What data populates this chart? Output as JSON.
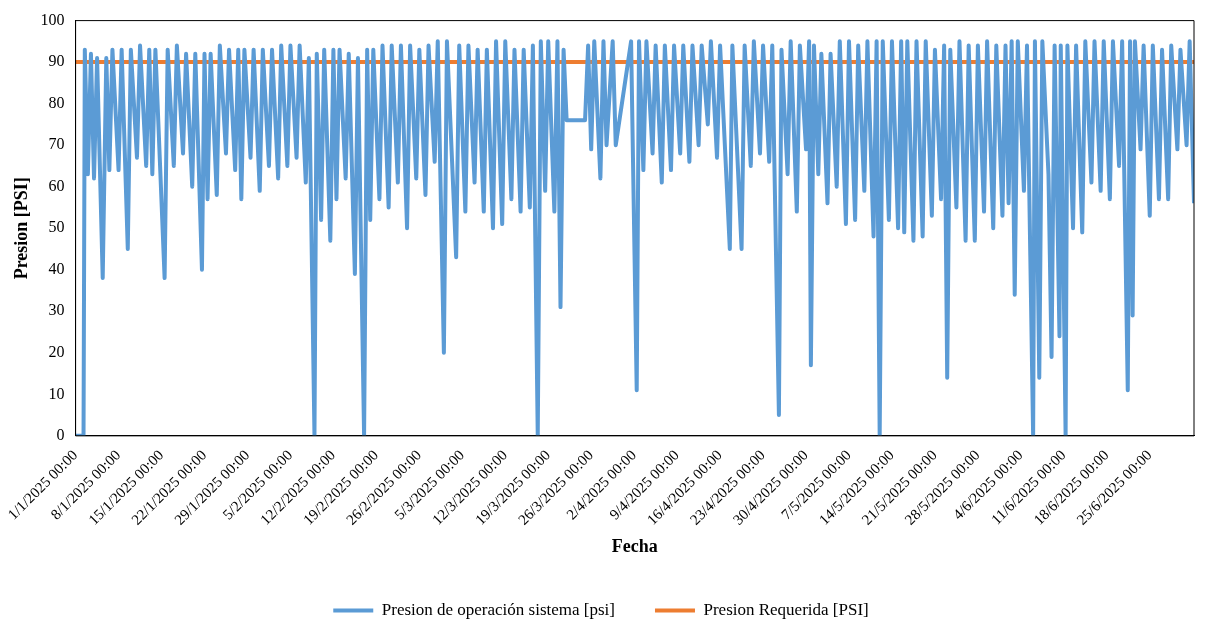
{
  "chart_data": {
    "type": "line",
    "xlabel": "Fecha",
    "ylabel": "Presion [PSI]",
    "xlim": [
      "2025-01-01",
      "2025-07-02T05:00"
    ],
    "xticks": [
      {
        "value": "2025-01-01",
        "label": "1/1/2025 00:00"
      },
      {
        "value": "2025-01-08",
        "label": "8/1/2025 00:00"
      },
      {
        "value": "2025-01-15",
        "label": "15/1/2025 00:00"
      },
      {
        "value": "2025-01-22",
        "label": "22/1/2025 00:00"
      },
      {
        "value": "2025-01-29",
        "label": "29/1/2025 00:00"
      },
      {
        "value": "2025-02-05",
        "label": "5/2/2025 00:00"
      },
      {
        "value": "2025-02-12",
        "label": "12/2/2025 00:00"
      },
      {
        "value": "2025-02-19",
        "label": "19/2/2025 00:00"
      },
      {
        "value": "2025-02-26",
        "label": "26/2/2025 00:00"
      },
      {
        "value": "2025-03-05",
        "label": "5/3/2025 00:00"
      },
      {
        "value": "2025-03-12",
        "label": "12/3/2025 00:00"
      },
      {
        "value": "2025-03-19",
        "label": "19/3/2025 00:00"
      },
      {
        "value": "2025-03-26",
        "label": "26/3/2025 00:00"
      },
      {
        "value": "2025-04-02",
        "label": "2/4/2025 00:00"
      },
      {
        "value": "2025-04-09",
        "label": "9/4/2025 00:00"
      },
      {
        "value": "2025-04-16",
        "label": "16/4/2025 00:00"
      },
      {
        "value": "2025-04-23",
        "label": "23/4/2025 00:00"
      },
      {
        "value": "2025-04-30",
        "label": "30/4/2025 00:00"
      },
      {
        "value": "2025-05-07",
        "label": "7/5/2025 00:00"
      },
      {
        "value": "2025-05-14",
        "label": "14/5/2025 00:00"
      },
      {
        "value": "2025-05-21",
        "label": "21/5/2025 00:00"
      },
      {
        "value": "2025-05-28",
        "label": "28/5/2025 00:00"
      },
      {
        "value": "2025-06-04",
        "label": "4/6/2025 00:00"
      },
      {
        "value": "2025-06-11",
        "label": "11/6/2025 00:00"
      },
      {
        "value": "2025-06-18",
        "label": "18/6/2025 00:00"
      },
      {
        "value": "2025-06-25",
        "label": "25/6/2025 00:00"
      }
    ],
    "ylim": [
      0,
      100
    ],
    "yticks": [
      0,
      10,
      20,
      30,
      40,
      50,
      60,
      70,
      80,
      90,
      100
    ],
    "grid": false,
    "legend": "bottom",
    "marker": "none",
    "series": [
      {
        "name": "Presion de operación sistema [psi]",
        "color": "#5b9bd5",
        "x": [
          "2025-01-01",
          "2025-01-02T07:00",
          "2025-01-02T12:00",
          "2025-01-03",
          "2025-01-03T12:00",
          "2025-01-04",
          "2025-01-04T12:00",
          "2025-01-05T10:00",
          "2025-01-06",
          "2025-01-06T12:00",
          "2025-01-07",
          "2025-01-08",
          "2025-01-08T12:00",
          "2025-01-09T12:00",
          "2025-01-10",
          "2025-01-11",
          "2025-01-11T12:00",
          "2025-01-12T12:00",
          "2025-01-13",
          "2025-01-13T12:00",
          "2025-01-14",
          "2025-01-15T12:00",
          "2025-01-16",
          "2025-01-17",
          "2025-01-17T12:00",
          "2025-01-18T12:00",
          "2025-01-19",
          "2025-01-20",
          "2025-01-20T12:00",
          "2025-01-21T14:00",
          "2025-01-22",
          "2025-01-22T12:00",
          "2025-01-23",
          "2025-01-24",
          "2025-01-24T12:00",
          "2025-01-25T12:00",
          "2025-01-26",
          "2025-01-27",
          "2025-01-27T12:00",
          "2025-01-28",
          "2025-01-28T12:00",
          "2025-01-29T12:00",
          "2025-01-30",
          "2025-01-31",
          "2025-01-31T12:00",
          "2025-02-01T12:00",
          "2025-02-02",
          "2025-02-03",
          "2025-02-03T12:00",
          "2025-02-04T12:00",
          "2025-02-05",
          "2025-02-06",
          "2025-02-06T12:00",
          "2025-02-07T12:00",
          "2025-02-08",
          "2025-02-08T22:00",
          "2025-02-09T07:00",
          "2025-02-10",
          "2025-02-10T12:00",
          "2025-02-11T12:00",
          "2025-02-12",
          "2025-02-12T12:00",
          "2025-02-13",
          "2025-02-14",
          "2025-02-14T12:00",
          "2025-02-15T12:00",
          "2025-02-16",
          "2025-02-17",
          "2025-02-17T12:00",
          "2025-02-18",
          "2025-02-18T12:00",
          "2025-02-19T12:00",
          "2025-02-20",
          "2025-02-21",
          "2025-02-21T12:00",
          "2025-02-22T12:00",
          "2025-02-23",
          "2025-02-24",
          "2025-02-24T12:00",
          "2025-02-25T12:00",
          "2025-02-26",
          "2025-02-27",
          "2025-02-27T12:00",
          "2025-02-28T12:00",
          "2025-03-01",
          "2025-03-02",
          "2025-03-02T12:00",
          "2025-03-04",
          "2025-03-04T12:00",
          "2025-03-05T12:00",
          "2025-03-06",
          "2025-03-07",
          "2025-03-07T12:00",
          "2025-03-08T12:00",
          "2025-03-09",
          "2025-03-10",
          "2025-03-10T12:00",
          "2025-03-11T12:00",
          "2025-03-12",
          "2025-03-13",
          "2025-03-13T12:00",
          "2025-03-14T12:00",
          "2025-03-15",
          "2025-03-16",
          "2025-03-16T12:00",
          "2025-03-17T07:00",
          "2025-03-17T19:00",
          "2025-03-18T12:00",
          "2025-03-19",
          "2025-03-20",
          "2025-03-20T12:00",
          "2025-03-21",
          "2025-03-21T12:00",
          "2025-03-22",
          "2025-03-25",
          "2025-03-25T12:00",
          "2025-03-26",
          "2025-03-26T12:00",
          "2025-03-27T12:00",
          "2025-03-28",
          "2025-03-28T12:00",
          "2025-03-29T12:00",
          "2025-03-30",
          "2025-04-01",
          "2025-04-01T12:00",
          "2025-04-02T10:00",
          "2025-04-02T19:00",
          "2025-04-03T12:00",
          "2025-04-04",
          "2025-04-05",
          "2025-04-05T12:00",
          "2025-04-06T12:00",
          "2025-04-07",
          "2025-04-08",
          "2025-04-08T12:00",
          "2025-04-09T12:00",
          "2025-04-10",
          "2025-04-11",
          "2025-04-11T12:00",
          "2025-04-12T12:00",
          "2025-04-13",
          "2025-04-14",
          "2025-04-14T12:00",
          "2025-04-15T12:00",
          "2025-04-16",
          "2025-04-17T14:00",
          "2025-04-18",
          "2025-04-19T12:00",
          "2025-04-20",
          "2025-04-21",
          "2025-04-21T12:00",
          "2025-04-22T12:00",
          "2025-04-23",
          "2025-04-24",
          "2025-04-24T12:00",
          "2025-04-25T14:00",
          "2025-04-26",
          "2025-04-27",
          "2025-04-27T12:00",
          "2025-04-28T12:00",
          "2025-04-29",
          "2025-04-30",
          "2025-04-30T12:00",
          "2025-04-30T19:00",
          "2025-05-01T07:00",
          "2025-05-02",
          "2025-05-02T12:00",
          "2025-05-03T12:00",
          "2025-05-04",
          "2025-05-05",
          "2025-05-05T12:00",
          "2025-05-06T12:00",
          "2025-05-07",
          "2025-05-08",
          "2025-05-08T12:00",
          "2025-05-09T12:00",
          "2025-05-10",
          "2025-05-11",
          "2025-05-11T12:00",
          "2025-05-12",
          "2025-05-12T12:00",
          "2025-05-13T12:00",
          "2025-05-14",
          "2025-05-15",
          "2025-05-15T12:00",
          "2025-05-16",
          "2025-05-16T12:00",
          "2025-05-17T12:00",
          "2025-05-18",
          "2025-05-19",
          "2025-05-19T12:00",
          "2025-05-20T12:00",
          "2025-05-21",
          "2025-05-22",
          "2025-05-22T12:00",
          "2025-05-23",
          "2025-05-23T12:00",
          "2025-05-24T12:00",
          "2025-05-25",
          "2025-05-26",
          "2025-05-26T12:00",
          "2025-05-27T12:00",
          "2025-05-28",
          "2025-05-29",
          "2025-05-29T12:00",
          "2025-05-30T12:00",
          "2025-05-31",
          "2025-06-01",
          "2025-06-01T12:00",
          "2025-06-02",
          "2025-06-02T12:00",
          "2025-06-03",
          "2025-06-03T12:00",
          "2025-06-04T12:00",
          "2025-06-05",
          "2025-06-06",
          "2025-06-06T07:00",
          "2025-06-07",
          "2025-06-07T12:00",
          "2025-06-08T12:00",
          "2025-06-09",
          "2025-06-09T12:00",
          "2025-06-10T07:00",
          "2025-06-10T12:00",
          "2025-06-11T07:00",
          "2025-06-11T14:00",
          "2025-06-12T12:00",
          "2025-06-13",
          "2025-06-14",
          "2025-06-14T12:00",
          "2025-06-15T12:00",
          "2025-06-16",
          "2025-06-17",
          "2025-06-17T12:00",
          "2025-06-18T12:00",
          "2025-06-19",
          "2025-06-20",
          "2025-06-20T12:00",
          "2025-06-21T10:00",
          "2025-06-21T19:00",
          "2025-06-22T05:00",
          "2025-06-22T14:00",
          "2025-06-23T12:00",
          "2025-06-24",
          "2025-06-25",
          "2025-06-25T12:00",
          "2025-06-26T12:00",
          "2025-06-27",
          "2025-06-28",
          "2025-06-28T12:00",
          "2025-06-29T12:00",
          "2025-06-30",
          "2025-07-01",
          "2025-07-01T12:00",
          "2025-07-02T05:00"
        ],
        "values": [
          0,
          0,
          93,
          63,
          92,
          62,
          91,
          38,
          91,
          64,
          93,
          64,
          93,
          45,
          93,
          67,
          94,
          65,
          93,
          63,
          93,
          38,
          93,
          65,
          94,
          68,
          92,
          60,
          92,
          40,
          92,
          57,
          92,
          58,
          94,
          68,
          93,
          64,
          93,
          57,
          93,
          67,
          93,
          59,
          93,
          65,
          93,
          62,
          94,
          65,
          94,
          67,
          94,
          61,
          91,
          0,
          92,
          52,
          93,
          47,
          93,
          57,
          93,
          62,
          92,
          39,
          91,
          0,
          93,
          52,
          93,
          57,
          94,
          55,
          94,
          61,
          94,
          50,
          94,
          62,
          93,
          58,
          94,
          66,
          95,
          20,
          95,
          43,
          94,
          54,
          94,
          61,
          93,
          54,
          93,
          50,
          95,
          51,
          95,
          57,
          93,
          54,
          93,
          55,
          94,
          0,
          95,
          59,
          95,
          54,
          95,
          31,
          93,
          76,
          76,
          94,
          69,
          95,
          62,
          95,
          70,
          95,
          70,
          90,
          95,
          11,
          95,
          64,
          95,
          68,
          94,
          61,
          94,
          64,
          94,
          68,
          94,
          66,
          94,
          70,
          94,
          75,
          95,
          67,
          94,
          45,
          94,
          45,
          94,
          65,
          95,
          68,
          94,
          66,
          94,
          5,
          93,
          63,
          95,
          54,
          94,
          69,
          95,
          17,
          94,
          63,
          92,
          56,
          92,
          60,
          95,
          51,
          95,
          52,
          94,
          59,
          95,
          48,
          95,
          0,
          95,
          52,
          95,
          50,
          95,
          49,
          95,
          47,
          95,
          48,
          95,
          53,
          93,
          57,
          94,
          14,
          93,
          55,
          95,
          47,
          94,
          47,
          94,
          54,
          95,
          50,
          94,
          53,
          94,
          56,
          95,
          34,
          95,
          59,
          94,
          0,
          95,
          14,
          95,
          63,
          19,
          94,
          24,
          94,
          0,
          94,
          50,
          94,
          49,
          95,
          61,
          95,
          59,
          95,
          57,
          95,
          65,
          95,
          11,
          95,
          29,
          95,
          69,
          94,
          53,
          94,
          57,
          93,
          57,
          94,
          69,
          93,
          70,
          95,
          56
        ]
      },
      {
        "name": "Presion Requerida [PSI]",
        "color": "#ed7d31",
        "x": [
          "2025-01-01",
          "2025-07-02T05:00"
        ],
        "values": [
          90,
          90
        ]
      }
    ]
  }
}
